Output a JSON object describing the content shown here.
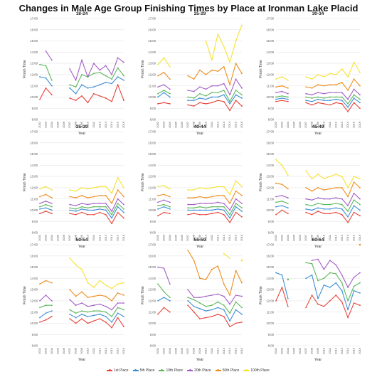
{
  "title": "Changes in Male Age Group Finishing Times by Place at Ironman Lake Placid",
  "chart_data": {
    "type": "line",
    "x": [
      2002,
      2003,
      2004,
      2005,
      2006,
      2007,
      2008,
      2009,
      2010,
      2011,
      2012,
      2013,
      2014,
      2015,
      2016
    ],
    "x_tick_labels": [
      "2002",
      "2003",
      "2004",
      "2005",
      "2006",
      "2007",
      "2008",
      "2009",
      "2010",
      "2011",
      "2012",
      "2013",
      "2014",
      "2015",
      "2016"
    ],
    "y_tick_labels": [
      "8:00",
      "9:00",
      "10:00",
      "11:00",
      "12:00",
      "13:00",
      "14:00",
      "15:00",
      "16:00",
      "17:00"
    ],
    "ylim": [
      8,
      17
    ],
    "xlabel": "Year",
    "ylabel": "Finish Time",
    "grid": true,
    "legend_position": "bottom",
    "series_names": [
      "1st Place",
      "5th Place",
      "10th Place",
      "20th Place",
      "50th Place",
      "100th Place"
    ],
    "series_colors": [
      "#e8443a",
      "#3d8fd6",
      "#5cb85c",
      "#a45ec7",
      "#f08c1e",
      "#f6e22e"
    ],
    "panels": [
      {
        "title": "18-24",
        "series": [
          [
            9.8,
            10.8,
            10.2,
            null,
            null,
            9.9,
            9.7,
            10.1,
            9.5,
            10.3,
            10.1,
            9.9,
            9.6,
            11.1,
            9.7
          ],
          [
            11.8,
            11.7,
            11.0,
            null,
            null,
            10.8,
            10.3,
            11.1,
            10.8,
            10.9,
            11.1,
            11.3,
            11.2,
            11.8,
            11.5
          ],
          [
            12.9,
            12.8,
            11.5,
            null,
            null,
            11.1,
            10.9,
            12.0,
            11.8,
            12.1,
            12.2,
            11.9,
            11.6,
            12.6,
            11.9
          ],
          [
            null,
            14.1,
            13.3,
            null,
            null,
            12.5,
            11.5,
            13.3,
            11.8,
            13.0,
            12.4,
            12.8,
            12.0,
            13.5,
            13.1
          ],
          [
            null,
            null,
            null,
            null,
            null,
            null,
            null,
            null,
            null,
            null,
            null,
            null,
            null,
            null,
            null
          ],
          [
            null,
            null,
            null,
            null,
            null,
            null,
            null,
            null,
            null,
            null,
            null,
            null,
            null,
            null,
            null
          ]
        ]
      },
      {
        "title": "25-29",
        "series": [
          [
            9.4,
            9.5,
            9.4,
            null,
            null,
            9.3,
            9.2,
            9.5,
            9.4,
            9.5,
            9.7,
            9.6,
            8.8,
            9.7,
            9.2
          ],
          [
            10.0,
            10.4,
            10.0,
            null,
            null,
            9.7,
            9.7,
            9.9,
            9.8,
            10.0,
            10.0,
            10.2,
            9.4,
            10.2,
            9.9
          ],
          [
            10.3,
            10.6,
            10.3,
            null,
            null,
            10.0,
            9.9,
            10.3,
            10.1,
            10.4,
            10.4,
            10.6,
            9.6,
            10.6,
            10.2
          ],
          [
            10.9,
            11.1,
            10.7,
            null,
            null,
            10.6,
            10.5,
            10.9,
            10.7,
            11.0,
            11.0,
            11.2,
            10.2,
            11.6,
            10.8
          ],
          [
            11.9,
            12.2,
            11.6,
            null,
            null,
            11.9,
            11.6,
            12.4,
            12.0,
            12.4,
            12.3,
            12.7,
            11.1,
            13.0,
            12.1
          ],
          [
            12.9,
            13.5,
            12.7,
            null,
            null,
            null,
            null,
            null,
            15.0,
            13.3,
            15.6,
            14.5,
            13.1,
            15.0,
            16.4
          ]
        ]
      },
      {
        "title": "30-34",
        "series": [
          [
            9.6,
            9.7,
            9.6,
            null,
            null,
            9.5,
            9.3,
            9.5,
            9.4,
            9.3,
            9.5,
            9.4,
            8.7,
            9.5,
            9.0
          ],
          [
            9.8,
            9.9,
            9.8,
            null,
            null,
            9.7,
            9.6,
            9.8,
            9.7,
            9.7,
            9.8,
            9.7,
            9.1,
            9.9,
            9.5
          ],
          [
            10.0,
            10.1,
            10.0,
            null,
            null,
            10.0,
            9.9,
            10.0,
            9.9,
            10.0,
            10.0,
            10.0,
            9.4,
            10.2,
            9.8
          ],
          [
            10.4,
            10.5,
            10.3,
            null,
            null,
            10.3,
            10.2,
            10.4,
            10.3,
            10.4,
            10.4,
            10.4,
            9.8,
            10.7,
            10.2
          ],
          [
            10.9,
            11.0,
            10.8,
            null,
            null,
            10.9,
            10.8,
            11.1,
            11.0,
            11.1,
            11.1,
            11.3,
            10.6,
            11.6,
            11.0
          ],
          [
            11.6,
            11.8,
            11.5,
            null,
            null,
            11.8,
            11.6,
            12.0,
            11.8,
            12.1,
            12.0,
            12.5,
            11.8,
            13.1,
            12.2
          ]
        ]
      },
      {
        "title": "35-39",
        "series": [
          [
            9.7,
            9.9,
            9.7,
            null,
            null,
            9.7,
            9.6,
            9.8,
            9.6,
            9.6,
            9.8,
            9.6,
            8.8,
            9.8,
            9.3
          ],
          [
            10.1,
            10.2,
            10.0,
            null,
            null,
            10.0,
            9.9,
            10.1,
            10.0,
            10.0,
            10.1,
            10.0,
            9.3,
            10.3,
            9.8
          ],
          [
            10.3,
            10.5,
            10.3,
            null,
            null,
            10.2,
            10.1,
            10.3,
            10.2,
            10.3,
            10.3,
            10.3,
            9.6,
            10.6,
            10.1
          ],
          [
            10.6,
            10.8,
            10.6,
            null,
            null,
            10.5,
            10.4,
            10.6,
            10.5,
            10.6,
            10.6,
            10.6,
            9.9,
            11.0,
            10.5
          ],
          [
            11.2,
            11.4,
            11.1,
            null,
            null,
            11.2,
            11.1,
            11.3,
            11.1,
            11.2,
            11.3,
            11.3,
            10.6,
            11.8,
            11.2
          ],
          [
            11.9,
            12.1,
            11.8,
            null,
            null,
            11.8,
            11.7,
            12.0,
            11.9,
            12.0,
            12.1,
            12.1,
            11.5,
            12.9,
            12.0
          ]
        ]
      },
      {
        "title": "40-44",
        "series": [
          [
            9.5,
            9.8,
            9.7,
            null,
            null,
            9.6,
            9.7,
            9.6,
            9.6,
            9.7,
            9.8,
            9.6,
            8.9,
            9.8,
            9.4
          ],
          [
            10.1,
            10.3,
            10.1,
            null,
            null,
            10.0,
            10.0,
            10.0,
            10.0,
            10.0,
            10.1,
            10.0,
            9.3,
            10.3,
            9.9
          ],
          [
            10.4,
            10.5,
            10.3,
            null,
            null,
            10.2,
            10.2,
            10.3,
            10.2,
            10.3,
            10.3,
            10.3,
            9.6,
            10.6,
            10.2
          ],
          [
            10.7,
            10.9,
            10.7,
            null,
            null,
            10.5,
            10.5,
            10.6,
            10.6,
            10.6,
            10.7,
            10.6,
            10.0,
            11.0,
            10.6
          ],
          [
            11.3,
            11.4,
            11.2,
            null,
            null,
            11.1,
            11.1,
            11.2,
            11.1,
            11.2,
            11.3,
            11.3,
            10.6,
            11.7,
            11.3
          ],
          [
            12.1,
            12.2,
            11.9,
            null,
            null,
            11.8,
            11.8,
            12.0,
            11.9,
            12.0,
            12.1,
            12.1,
            11.4,
            12.6,
            12.1
          ]
        ]
      },
      {
        "title": "45-49",
        "series": [
          [
            9.6,
            10.0,
            9.7,
            null,
            null,
            9.8,
            9.6,
            9.9,
            9.7,
            9.7,
            9.8,
            9.6,
            8.9,
            9.8,
            9.5
          ],
          [
            10.3,
            10.4,
            10.2,
            null,
            null,
            10.1,
            10.0,
            10.2,
            10.1,
            10.1,
            10.2,
            10.1,
            9.4,
            10.4,
            10.0
          ],
          [
            10.7,
            10.8,
            10.6,
            null,
            null,
            10.5,
            10.4,
            10.6,
            10.5,
            10.5,
            10.6,
            10.5,
            9.9,
            10.9,
            10.5
          ],
          [
            11.2,
            11.3,
            11.1,
            null,
            null,
            11.0,
            10.9,
            11.1,
            11.0,
            11.0,
            11.1,
            11.0,
            10.4,
            11.5,
            11.0
          ],
          [
            12.4,
            12.3,
            11.9,
            null,
            null,
            12.0,
            11.7,
            12.0,
            11.8,
            11.9,
            12.0,
            12.0,
            11.2,
            12.5,
            12.0
          ],
          [
            14.5,
            14.0,
            13.1,
            null,
            null,
            13.5,
            12.8,
            13.2,
            12.8,
            13.0,
            13.2,
            13.0,
            12.0,
            13.0,
            12.8
          ]
        ]
      },
      {
        "title": "50-54",
        "series": [
          [
            10.1,
            10.3,
            10.6,
            null,
            null,
            10.4,
            10.0,
            10.4,
            10.0,
            10.2,
            10.4,
            10.1,
            9.6,
            10.5,
            9.7
          ],
          [
            10.5,
            10.9,
            11.1,
            null,
            null,
            10.8,
            10.5,
            10.8,
            10.6,
            10.7,
            10.8,
            10.6,
            10.1,
            10.9,
            10.6
          ],
          [
            11.4,
            11.6,
            11.6,
            null,
            null,
            11.2,
            10.9,
            11.1,
            11.0,
            11.1,
            11.1,
            11.0,
            10.6,
            11.4,
            11.2
          ],
          [
            12.0,
            12.5,
            12.0,
            null,
            null,
            12.1,
            11.6,
            11.8,
            11.5,
            11.6,
            11.7,
            11.5,
            11.2,
            11.8,
            11.8
          ],
          [
            13.5,
            13.8,
            13.6,
            null,
            null,
            13.0,
            12.4,
            12.8,
            12.3,
            12.4,
            12.5,
            12.4,
            12.0,
            12.7,
            12.5
          ],
          [
            null,
            null,
            null,
            null,
            null,
            15.8,
            15.2,
            14.8,
            13.6,
            13.2,
            13.8,
            13.4,
            13.1,
            13.5,
            13.6
          ]
        ]
      },
      {
        "title": "55-59",
        "series": [
          [
            10.8,
            11.4,
            11.0,
            null,
            null,
            11.6,
            11.0,
            10.4,
            10.5,
            10.6,
            10.8,
            10.6,
            9.7,
            10.0,
            10.1
          ],
          [
            12.0,
            12.3,
            12.0,
            null,
            null,
            12.0,
            11.5,
            11.3,
            11.1,
            11.2,
            11.4,
            11.2,
            10.2,
            11.2,
            10.8
          ],
          [
            13.5,
            12.8,
            12.3,
            null,
            null,
            12.3,
            12.1,
            11.8,
            11.5,
            11.6,
            11.9,
            11.6,
            10.9,
            11.9,
            11.4
          ],
          [
            15.0,
            14.9,
            13.5,
            null,
            null,
            13.0,
            12.3,
            12.3,
            12.4,
            12.5,
            12.6,
            12.4,
            11.7,
            12.5,
            12.4
          ],
          [
            null,
            null,
            null,
            null,
            null,
            16.5,
            15.6,
            14.0,
            13.9,
            14.8,
            15.1,
            13.5,
            12.5,
            14.7,
            13.6
          ],
          [
            null,
            null,
            null,
            null,
            null,
            null,
            null,
            null,
            null,
            null,
            null,
            16.2,
            15.8,
            null,
            15.6
          ]
        ]
      },
      {
        "title": "60-64",
        "series": [
          [
            12.0,
            13.2,
            11.5,
            null,
            null,
            11.4,
            12.5,
            11.7,
            11.5,
            12.0,
            12.5,
            11.9,
            10.5,
            11.8,
            11.6
          ],
          [
            14.5,
            14.3,
            12.2,
            null,
            null,
            14.0,
            14.3,
            12.2,
            13.4,
            13.2,
            13.6,
            12.9,
            11.2,
            12.9,
            12.7
          ],
          [
            null,
            null,
            13.9,
            null,
            null,
            15.4,
            15.3,
            13.8,
            14.0,
            14.5,
            14.4,
            13.6,
            12.0,
            13.3,
            13.6
          ],
          [
            null,
            null,
            null,
            null,
            null,
            null,
            15.6,
            15.7,
            14.8,
            15.6,
            15.2,
            14.3,
            13.2,
            14.1,
            14.5
          ],
          [
            null,
            null,
            null,
            null,
            null,
            null,
            null,
            null,
            null,
            null,
            null,
            null,
            null,
            null,
            17.0
          ],
          [
            null,
            null,
            null,
            null,
            null,
            null,
            null,
            null,
            null,
            null,
            null,
            null,
            null,
            null,
            null
          ]
        ]
      }
    ]
  }
}
